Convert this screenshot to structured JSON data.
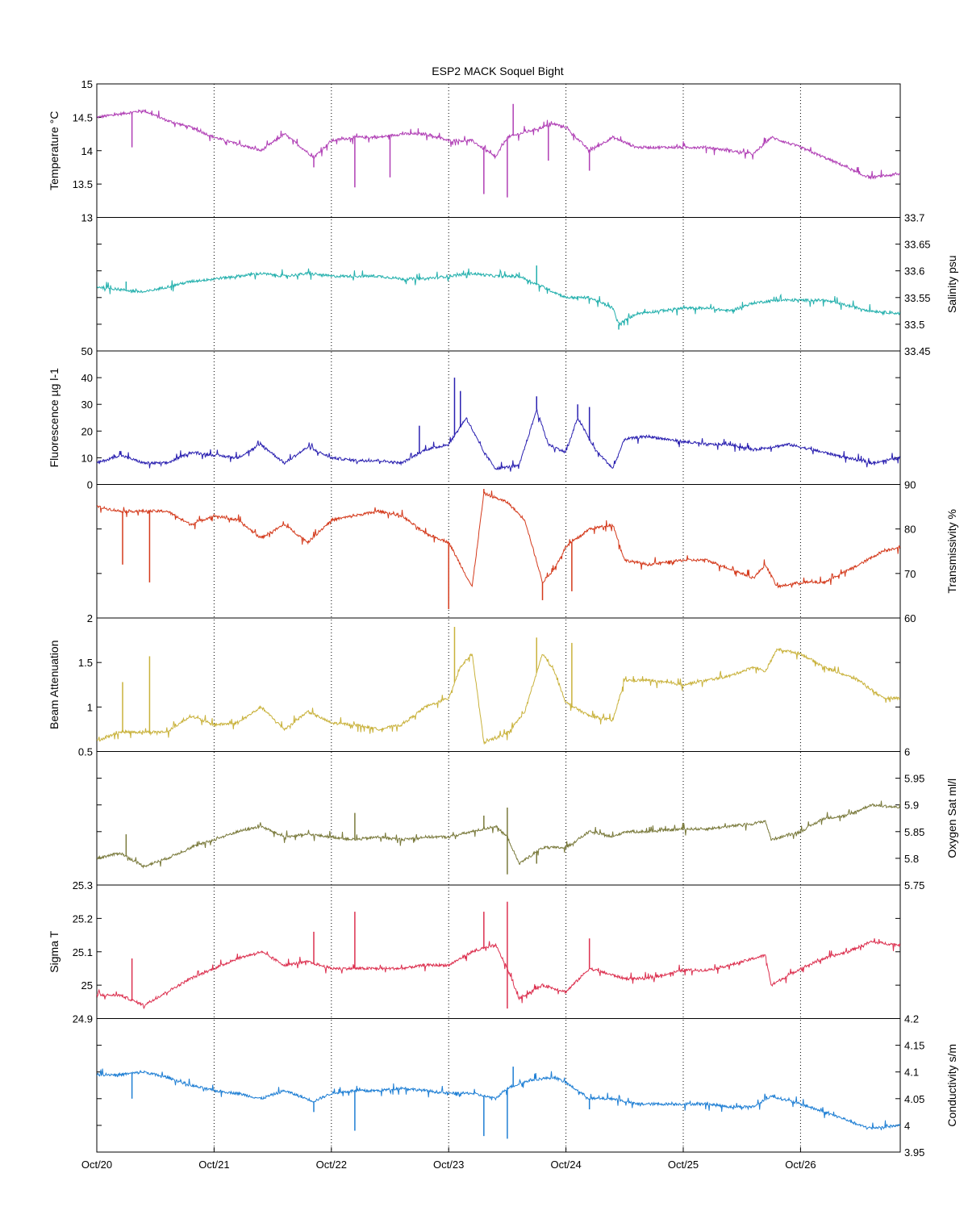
{
  "chart_data": {
    "type": "line",
    "title": "ESP2 MACK  Soquel Bight",
    "x_tick_labels": [
      "Oct/20",
      "Oct/21",
      "Oct/22",
      "Oct/23",
      "Oct/24",
      "Oct/25",
      "Oct/26"
    ],
    "x_range_days": [
      0,
      6.85
    ],
    "grid": "vertical dotted lines at each day",
    "panels": [
      {
        "name": "temperature",
        "ylabel": "Temperature °C",
        "axis_side": "left",
        "ylim": [
          13,
          15
        ],
        "tick_values": [
          13,
          13.5,
          14,
          14.5,
          15
        ],
        "tick_labels": [
          "13",
          "13.5",
          "14",
          "14.5",
          "15"
        ],
        "color": "#b03fb5",
        "x": [
          0,
          0.2,
          0.4,
          0.6,
          0.8,
          1.0,
          1.2,
          1.4,
          1.6,
          1.85,
          2.0,
          2.2,
          2.4,
          2.6,
          2.8,
          3.0,
          3.2,
          3.4,
          3.5,
          3.7,
          3.9,
          4.0,
          4.2,
          4.4,
          4.6,
          4.8,
          5.0,
          5.2,
          5.4,
          5.6,
          5.75,
          6.0,
          6.2,
          6.4,
          6.5,
          6.6,
          6.85
        ],
        "y": [
          14.5,
          14.55,
          14.6,
          14.45,
          14.35,
          14.2,
          14.1,
          14.0,
          14.25,
          13.9,
          14.15,
          14.2,
          14.2,
          14.25,
          14.25,
          14.15,
          14.15,
          13.9,
          14.2,
          14.3,
          14.4,
          14.35,
          14.0,
          14.2,
          14.05,
          14.05,
          14.05,
          14.05,
          14.0,
          13.95,
          14.2,
          14.05,
          13.9,
          13.75,
          13.65,
          13.6,
          13.65
        ],
        "spikes": [
          {
            "x": 0.3,
            "y": 14.05
          },
          {
            "x": 1.85,
            "y": 13.75
          },
          {
            "x": 2.2,
            "y": 13.45
          },
          {
            "x": 2.5,
            "y": 13.6
          },
          {
            "x": 3.3,
            "y": 13.35
          },
          {
            "x": 3.5,
            "y": 13.3
          },
          {
            "x": 3.55,
            "y": 14.7
          },
          {
            "x": 3.85,
            "y": 13.85
          },
          {
            "x": 4.2,
            "y": 13.7
          }
        ]
      },
      {
        "name": "salinity",
        "ylabel": "Salinity psu",
        "axis_side": "right",
        "ylim": [
          33.45,
          33.7
        ],
        "tick_values": [
          33.45,
          33.5,
          33.55,
          33.6,
          33.65,
          33.7
        ],
        "tick_labels": [
          "33.45",
          "33.5",
          "33.55",
          "33.6",
          "33.65",
          "33.7"
        ],
        "color": "#24b0ad",
        "x": [
          0,
          0.2,
          0.4,
          0.6,
          0.8,
          1.0,
          1.2,
          1.4,
          1.6,
          1.8,
          2.0,
          2.2,
          2.4,
          2.6,
          2.8,
          3.0,
          3.2,
          3.4,
          3.6,
          3.8,
          4.0,
          4.2,
          4.4,
          4.45,
          4.6,
          4.8,
          5.0,
          5.2,
          5.4,
          5.6,
          5.8,
          6.0,
          6.2,
          6.4,
          6.6,
          6.85
        ],
        "y": [
          33.57,
          33.565,
          33.56,
          33.57,
          33.58,
          33.585,
          33.59,
          33.595,
          33.59,
          33.595,
          33.59,
          33.59,
          33.59,
          33.585,
          33.585,
          33.59,
          33.595,
          33.59,
          33.59,
          33.57,
          33.55,
          33.55,
          33.53,
          33.5,
          33.52,
          33.525,
          33.53,
          33.53,
          33.525,
          33.54,
          33.545,
          33.545,
          33.545,
          33.535,
          33.525,
          33.52
        ],
        "spikes": [
          {
            "x": 0.25,
            "y": 33.58
          },
          {
            "x": 3.75,
            "y": 33.61
          },
          {
            "x": 4.45,
            "y": 33.49
          }
        ]
      },
      {
        "name": "fluorescence",
        "ylabel": "Fluorescence µg l-1",
        "axis_side": "left",
        "ylim": [
          0,
          50
        ],
        "tick_values": [
          0,
          10,
          20,
          30,
          40,
          50
        ],
        "tick_labels": [
          "0",
          "10",
          "20",
          "30",
          "40",
          "50"
        ],
        "color": "#2a20b0",
        "x": [
          0,
          0.2,
          0.4,
          0.6,
          0.8,
          1.0,
          1.2,
          1.4,
          1.6,
          1.8,
          2.0,
          2.2,
          2.4,
          2.6,
          2.8,
          3.0,
          3.15,
          3.3,
          3.4,
          3.6,
          3.75,
          3.85,
          4.0,
          4.1,
          4.25,
          4.4,
          4.5,
          4.7,
          5.0,
          5.2,
          5.4,
          5.6,
          5.75,
          5.9,
          6.2,
          6.4,
          6.6,
          6.85
        ],
        "y": [
          8,
          11,
          8,
          8,
          12,
          11,
          10,
          15,
          8,
          14,
          10,
          9,
          9,
          8,
          13,
          15,
          25,
          12,
          6,
          7,
          28,
          15,
          12,
          25,
          13,
          6,
          17,
          18,
          16,
          15,
          15,
          13,
          14,
          15,
          12,
          10,
          8,
          10
        ],
        "spikes": [
          {
            "x": 2.75,
            "y": 22
          },
          {
            "x": 3.05,
            "y": 40
          },
          {
            "x": 3.1,
            "y": 35
          },
          {
            "x": 3.75,
            "y": 33
          },
          {
            "x": 4.1,
            "y": 30
          },
          {
            "x": 4.2,
            "y": 29
          }
        ]
      },
      {
        "name": "transmissivity",
        "ylabel": "Transmissivity %",
        "axis_side": "right",
        "ylim": [
          60,
          90
        ],
        "tick_values": [
          60,
          70,
          80,
          90
        ],
        "tick_labels": [
          "60",
          "70",
          "80",
          "90"
        ],
        "color": "#d43a1c",
        "x": [
          0,
          0.2,
          0.4,
          0.6,
          0.8,
          1.0,
          1.2,
          1.4,
          1.6,
          1.8,
          2.0,
          2.2,
          2.4,
          2.6,
          2.8,
          3.0,
          3.1,
          3.2,
          3.3,
          3.5,
          3.65,
          3.8,
          3.9,
          4.0,
          4.2,
          4.4,
          4.5,
          4.7,
          5.0,
          5.2,
          5.4,
          5.6,
          5.7,
          5.8,
          6.0,
          6.2,
          6.5,
          6.7,
          6.85
        ],
        "y": [
          85,
          84,
          84,
          84,
          81,
          83,
          82,
          78,
          81,
          77,
          82,
          83,
          84,
          83,
          79,
          77,
          72,
          67,
          88,
          86,
          82,
          68,
          71,
          76,
          80,
          81,
          73,
          72,
          73,
          73,
          71,
          69,
          72,
          67,
          68,
          68,
          72,
          75,
          76
        ],
        "spikes": [
          {
            "x": 0.22,
            "y": 72
          },
          {
            "x": 0.45,
            "y": 68
          },
          {
            "x": 3.0,
            "y": 62
          },
          {
            "x": 3.3,
            "y": 89
          },
          {
            "x": 3.8,
            "y": 64
          },
          {
            "x": 4.05,
            "y": 66
          }
        ]
      },
      {
        "name": "beam_attenuation",
        "ylabel": "Beam Attenuation",
        "axis_side": "left",
        "ylim": [
          0.5,
          2
        ],
        "tick_values": [
          0.5,
          1,
          1.5,
          2
        ],
        "tick_labels": [
          "0.5",
          "1",
          "1.5",
          "2"
        ],
        "color": "#c9b23c",
        "x": [
          0,
          0.2,
          0.4,
          0.6,
          0.8,
          1.0,
          1.2,
          1.4,
          1.6,
          1.8,
          2.0,
          2.2,
          2.4,
          2.6,
          2.8,
          3.0,
          3.1,
          3.2,
          3.3,
          3.5,
          3.65,
          3.8,
          3.9,
          4.0,
          4.2,
          4.4,
          4.5,
          4.7,
          5.0,
          5.2,
          5.4,
          5.6,
          5.7,
          5.8,
          6.0,
          6.2,
          6.5,
          6.7,
          6.85
        ],
        "y": [
          0.62,
          0.72,
          0.72,
          0.72,
          0.9,
          0.8,
          0.82,
          1.0,
          0.75,
          0.95,
          0.82,
          0.8,
          0.75,
          0.8,
          1.0,
          1.1,
          1.45,
          1.6,
          0.6,
          0.7,
          0.95,
          1.6,
          1.4,
          1.05,
          0.9,
          0.85,
          1.3,
          1.3,
          1.25,
          1.3,
          1.35,
          1.45,
          1.4,
          1.65,
          1.6,
          1.45,
          1.3,
          1.1,
          1.1
        ],
        "spikes": [
          {
            "x": 0.22,
            "y": 1.28
          },
          {
            "x": 0.45,
            "y": 1.57
          },
          {
            "x": 3.05,
            "y": 1.9
          },
          {
            "x": 3.75,
            "y": 1.78
          },
          {
            "x": 4.05,
            "y": 1.72
          },
          {
            "x": 4.4,
            "y": 0.88
          }
        ]
      },
      {
        "name": "oxygen_saturation",
        "ylabel": "Oxygen Sat ml/l",
        "axis_side": "right",
        "ylim": [
          5.75,
          6
        ],
        "tick_values": [
          5.75,
          5.8,
          5.85,
          5.9,
          5.95,
          6
        ],
        "tick_labels": [
          "5.75",
          "5.8",
          "5.85",
          "5.9",
          "5.95",
          "6"
        ],
        "color": "#7a7a3c",
        "x": [
          0,
          0.2,
          0.4,
          0.6,
          0.8,
          1.0,
          1.2,
          1.4,
          1.6,
          1.8,
          2.0,
          2.2,
          2.4,
          2.6,
          2.8,
          3.0,
          3.2,
          3.4,
          3.5,
          3.6,
          3.8,
          4.0,
          4.2,
          4.4,
          4.5,
          4.7,
          5.0,
          5.2,
          5.4,
          5.6,
          5.7,
          5.75,
          6.0,
          6.2,
          6.4,
          6.6,
          6.85
        ],
        "y": [
          5.8,
          5.81,
          5.785,
          5.8,
          5.82,
          5.835,
          5.85,
          5.86,
          5.84,
          5.845,
          5.84,
          5.835,
          5.84,
          5.835,
          5.84,
          5.84,
          5.85,
          5.86,
          5.84,
          5.79,
          5.82,
          5.82,
          5.85,
          5.84,
          5.85,
          5.85,
          5.855,
          5.855,
          5.86,
          5.865,
          5.87,
          5.835,
          5.85,
          5.875,
          5.88,
          5.9,
          5.895
        ],
        "spikes": [
          {
            "x": 0.25,
            "y": 5.845
          },
          {
            "x": 2.2,
            "y": 5.885
          },
          {
            "x": 3.3,
            "y": 5.88
          },
          {
            "x": 3.5,
            "y": 5.895
          },
          {
            "x": 3.5,
            "y": 5.77
          },
          {
            "x": 3.75,
            "y": 5.79
          }
        ]
      },
      {
        "name": "sigma_t",
        "ylabel": "Sigma T",
        "axis_side": "left",
        "ylim": [
          24.9,
          25.3
        ],
        "tick_values": [
          24.9,
          25,
          25.1,
          25.2,
          25.3
        ],
        "tick_labels": [
          "24.9",
          "25",
          "25.1",
          "25.2",
          "25.3"
        ],
        "color": "#dc3150",
        "x": [
          0,
          0.2,
          0.4,
          0.6,
          0.8,
          1.0,
          1.2,
          1.4,
          1.6,
          1.8,
          2.0,
          2.2,
          2.4,
          2.6,
          2.8,
          3.0,
          3.2,
          3.4,
          3.5,
          3.6,
          3.8,
          4.0,
          4.2,
          4.4,
          4.5,
          4.7,
          5.0,
          5.2,
          5.4,
          5.6,
          5.7,
          5.75,
          6.0,
          6.2,
          6.4,
          6.6,
          6.85
        ],
        "y": [
          24.97,
          24.97,
          24.94,
          24.98,
          25.02,
          25.05,
          25.08,
          25.1,
          25.06,
          25.07,
          25.05,
          25.05,
          25.05,
          25.05,
          25.06,
          25.06,
          25.1,
          25.12,
          25.05,
          24.96,
          25.0,
          24.98,
          25.05,
          25.03,
          25.02,
          25.02,
          25.045,
          25.045,
          25.06,
          25.08,
          25.09,
          25.0,
          25.05,
          25.08,
          25.1,
          25.13,
          25.12
        ],
        "spikes": [
          {
            "x": 0.3,
            "y": 25.08
          },
          {
            "x": 1.85,
            "y": 25.16
          },
          {
            "x": 2.2,
            "y": 25.22
          },
          {
            "x": 3.3,
            "y": 25.22
          },
          {
            "x": 3.5,
            "y": 25.25
          },
          {
            "x": 3.5,
            "y": 24.93
          },
          {
            "x": 4.2,
            "y": 25.14
          }
        ]
      },
      {
        "name": "conductivity",
        "ylabel": "Conductivity s/m",
        "axis_side": "right",
        "ylim": [
          3.95,
          4.2
        ],
        "tick_values": [
          3.95,
          4,
          4.05,
          4.1,
          4.15,
          4.2
        ],
        "tick_labels": [
          "3.95",
          "4",
          "4.05",
          "4.1",
          "4.15",
          "4.2"
        ],
        "color": "#1f7fd4",
        "x": [
          0,
          0.2,
          0.4,
          0.6,
          0.8,
          1.0,
          1.2,
          1.4,
          1.6,
          1.85,
          2.0,
          2.2,
          2.4,
          2.6,
          2.8,
          3.0,
          3.2,
          3.4,
          3.5,
          3.7,
          3.9,
          4.0,
          4.2,
          4.4,
          4.6,
          4.8,
          5.0,
          5.2,
          5.4,
          5.6,
          5.75,
          6.0,
          6.2,
          6.4,
          6.5,
          6.6,
          6.85
        ],
        "y": [
          4.095,
          4.095,
          4.1,
          4.09,
          4.075,
          4.065,
          4.06,
          4.05,
          4.065,
          4.045,
          4.06,
          4.065,
          4.065,
          4.07,
          4.065,
          4.06,
          4.06,
          4.05,
          4.07,
          4.085,
          4.09,
          4.08,
          4.05,
          4.05,
          4.04,
          4.04,
          4.04,
          4.04,
          4.035,
          4.035,
          4.055,
          4.04,
          4.025,
          4.01,
          4.0,
          3.995,
          4.0
        ],
        "spikes": [
          {
            "x": 0.3,
            "y": 4.05
          },
          {
            "x": 1.85,
            "y": 4.025
          },
          {
            "x": 2.2,
            "y": 3.99
          },
          {
            "x": 3.3,
            "y": 3.98
          },
          {
            "x": 3.5,
            "y": 3.975
          },
          {
            "x": 3.55,
            "y": 4.11
          },
          {
            "x": 4.2,
            "y": 4.03
          }
        ]
      }
    ]
  }
}
